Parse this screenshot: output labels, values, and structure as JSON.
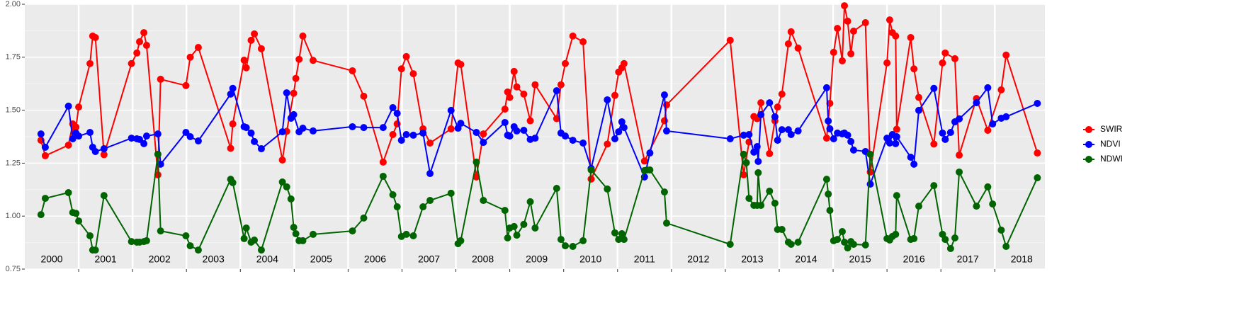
{
  "chart_data": {
    "type": "line",
    "xlim": [
      2000,
      2018.93
    ],
    "ylim": [
      0.75,
      2.0
    ],
    "xticks": [
      2001,
      2002,
      2003,
      2004,
      2005,
      2006,
      2007,
      2008,
      2009,
      2010,
      2011,
      2012,
      2013,
      2014,
      2015,
      2016,
      2017,
      2018
    ],
    "yticks": [
      {
        "value": 0.75,
        "label": "0.75"
      },
      {
        "value": 1.0,
        "label": "1.00"
      },
      {
        "value": 1.25,
        "label": "1.25"
      },
      {
        "value": 1.5,
        "label": "1.50"
      },
      {
        "value": 1.75,
        "label": "1.75"
      },
      {
        "value": 2.0,
        "label": "2.00"
      }
    ],
    "grid": true,
    "legend": "right",
    "annotations": [
      {
        "text": "2000",
        "x": 2000.5
      },
      {
        "text": "2001",
        "x": 2001.5
      },
      {
        "text": "2002",
        "x": 2002.5
      },
      {
        "text": "2003",
        "x": 2003.5
      },
      {
        "text": "2004",
        "x": 2004.5
      },
      {
        "text": "2005",
        "x": 2005.5
      },
      {
        "text": "2006",
        "x": 2006.5
      },
      {
        "text": "2007",
        "x": 2007.5
      },
      {
        "text": "2008",
        "x": 2008.5
      },
      {
        "text": "2009",
        "x": 2009.5
      },
      {
        "text": "2010",
        "x": 2010.5
      },
      {
        "text": "2011",
        "x": 2011.5
      },
      {
        "text": "2012",
        "x": 2012.5
      },
      {
        "text": "2013",
        "x": 2013.5
      },
      {
        "text": "2014",
        "x": 2014.5
      },
      {
        "text": "2015",
        "x": 2015.5
      },
      {
        "text": "2016",
        "x": 2016.5
      },
      {
        "text": "2017",
        "x": 2017.5
      },
      {
        "text": "2018",
        "x": 2018.5
      }
    ],
    "series": [
      {
        "name": "SWIR",
        "color": "#ff0000",
        "x": [
          2000.3,
          2000.38,
          2000.81,
          2000.89,
          2000.92,
          2000.95,
          2001.0,
          2001.21,
          2001.26,
          2001.31,
          2001.47,
          2001.98,
          2002.08,
          2002.13,
          2002.21,
          2002.26,
          2002.47,
          2002.52,
          2002.99,
          2003.07,
          2003.22,
          2003.82,
          2003.86,
          2004.07,
          2004.11,
          2004.2,
          2004.26,
          2004.39,
          2004.78,
          2004.86,
          2004.99,
          2005.03,
          2005.09,
          2005.16,
          2005.35,
          2006.08,
          2006.29,
          2006.65,
          2006.83,
          2006.91,
          2006.99,
          2007.08,
          2007.21,
          2007.39,
          2007.52,
          2007.91,
          2008.04,
          2008.09,
          2008.38,
          2008.51,
          2008.91,
          2008.96,
          2009.0,
          2009.08,
          2009.13,
          2009.26,
          2009.38,
          2009.47,
          2009.87,
          2009.95,
          2010.03,
          2010.17,
          2010.36,
          2010.51,
          2010.81,
          2010.95,
          2011.02,
          2011.08,
          2011.12,
          2011.5,
          2011.87,
          2011.91,
          2013.09,
          2013.34,
          2013.44,
          2013.53,
          2013.59,
          2013.66,
          2013.82,
          2013.92,
          2013.97,
          2014.05,
          2014.17,
          2014.22,
          2014.35,
          2014.88,
          2014.94,
          2015.01,
          2015.08,
          2015.17,
          2015.21,
          2015.27,
          2015.33,
          2015.38,
          2015.6,
          2015.69,
          2016.0,
          2016.05,
          2016.1,
          2016.16,
          2016.18,
          2016.44,
          2016.5,
          2016.59,
          2016.87,
          2017.03,
          2017.08,
          2017.26,
          2017.34,
          2017.66,
          2017.87,
          2018.12,
          2018.21,
          2018.79
        ],
        "values": [
          1.358,
          1.285,
          1.335,
          1.435,
          1.4,
          1.42,
          1.515,
          1.72,
          1.85,
          1.843,
          1.29,
          1.72,
          1.77,
          1.823,
          1.866,
          1.806,
          1.195,
          1.646,
          1.616,
          1.75,
          1.796,
          1.32,
          1.435,
          1.736,
          1.7,
          1.83,
          1.86,
          1.79,
          1.265,
          1.4,
          1.58,
          1.65,
          1.74,
          1.85,
          1.735,
          1.686,
          1.566,
          1.255,
          1.385,
          1.435,
          1.695,
          1.753,
          1.672,
          1.412,
          1.345,
          1.412,
          1.723,
          1.716,
          1.185,
          1.388,
          1.505,
          1.586,
          1.56,
          1.683,
          1.61,
          1.576,
          1.45,
          1.62,
          1.46,
          1.62,
          1.72,
          1.85,
          1.823,
          1.175,
          1.34,
          1.57,
          1.68,
          1.7,
          1.72,
          1.26,
          1.45,
          1.525,
          1.83,
          1.195,
          1.35,
          1.47,
          1.46,
          1.535,
          1.295,
          1.45,
          1.515,
          1.576,
          1.813,
          1.87,
          1.793,
          1.368,
          1.532,
          1.773,
          1.886,
          1.733,
          1.993,
          1.92,
          1.766,
          1.873,
          1.913,
          1.208,
          1.723,
          1.926,
          1.866,
          1.85,
          1.41,
          1.843,
          1.695,
          1.56,
          1.34,
          1.723,
          1.77,
          1.743,
          1.288,
          1.555,
          1.405,
          1.596,
          1.76,
          1.298
        ]
      },
      {
        "name": "NDVI",
        "color": "#0000ff",
        "x": [
          2000.3,
          2000.38,
          2000.81,
          2000.89,
          2000.95,
          2001.0,
          2001.21,
          2001.26,
          2001.31,
          2001.47,
          2001.98,
          2002.08,
          2002.13,
          2002.21,
          2002.26,
          2002.47,
          2002.52,
          2002.99,
          2003.07,
          2003.22,
          2003.82,
          2003.86,
          2004.07,
          2004.11,
          2004.2,
          2004.26,
          2004.39,
          2004.78,
          2004.86,
          2004.94,
          2004.99,
          2005.09,
          2005.16,
          2005.35,
          2006.08,
          2006.29,
          2006.65,
          2006.83,
          2006.91,
          2006.99,
          2007.08,
          2007.21,
          2007.39,
          2007.52,
          2007.91,
          2008.04,
          2008.09,
          2008.38,
          2008.51,
          2008.91,
          2008.96,
          2009.0,
          2009.08,
          2009.13,
          2009.26,
          2009.38,
          2009.47,
          2009.87,
          2009.95,
          2010.03,
          2010.17,
          2010.36,
          2010.51,
          2010.81,
          2010.95,
          2011.02,
          2011.08,
          2011.12,
          2011.5,
          2011.6,
          2011.87,
          2011.91,
          2013.09,
          2013.34,
          2013.44,
          2013.53,
          2013.59,
          2013.61,
          2013.66,
          2013.82,
          2013.92,
          2013.97,
          2014.05,
          2014.17,
          2014.22,
          2014.35,
          2014.88,
          2014.91,
          2014.94,
          2015.01,
          2015.08,
          2015.17,
          2015.21,
          2015.27,
          2015.33,
          2015.38,
          2015.6,
          2015.69,
          2016.0,
          2016.05,
          2016.1,
          2016.16,
          2016.18,
          2016.44,
          2016.5,
          2016.59,
          2016.87,
          2017.03,
          2017.08,
          2017.18,
          2017.26,
          2017.34,
          2017.66,
          2017.87,
          2017.96,
          2018.12,
          2018.21,
          2018.79
        ],
        "values": [
          1.388,
          1.325,
          1.519,
          1.365,
          1.392,
          1.378,
          1.395,
          1.325,
          1.305,
          1.318,
          1.368,
          1.365,
          1.362,
          1.342,
          1.378,
          1.388,
          1.245,
          1.395,
          1.375,
          1.355,
          1.576,
          1.603,
          1.422,
          1.418,
          1.392,
          1.352,
          1.318,
          1.398,
          1.582,
          1.462,
          1.479,
          1.398,
          1.415,
          1.402,
          1.422,
          1.418,
          1.418,
          1.512,
          1.485,
          1.358,
          1.385,
          1.382,
          1.392,
          1.201,
          1.499,
          1.415,
          1.438,
          1.395,
          1.348,
          1.442,
          1.382,
          1.378,
          1.422,
          1.402,
          1.405,
          1.362,
          1.368,
          1.592,
          1.392,
          1.378,
          1.358,
          1.345,
          1.225,
          1.549,
          1.365,
          1.398,
          1.445,
          1.418,
          1.185,
          1.298,
          1.572,
          1.402,
          1.365,
          1.382,
          1.385,
          1.302,
          1.328,
          1.258,
          1.479,
          1.535,
          1.469,
          1.358,
          1.408,
          1.408,
          1.385,
          1.402,
          1.606,
          1.449,
          1.412,
          1.365,
          1.392,
          1.388,
          1.392,
          1.382,
          1.352,
          1.312,
          1.305,
          1.151,
          1.368,
          1.345,
          1.385,
          1.342,
          1.375,
          1.278,
          1.245,
          1.499,
          1.603,
          1.392,
          1.362,
          1.395,
          1.445,
          1.459,
          1.535,
          1.606,
          1.435,
          1.462,
          1.469,
          1.532
        ]
      },
      {
        "name": "NDWI",
        "color": "#006400",
        "x": [
          2000.3,
          2000.38,
          2000.81,
          2000.89,
          2000.95,
          2001.0,
          2001.21,
          2001.26,
          2001.31,
          2001.47,
          2001.98,
          2002.08,
          2002.13,
          2002.21,
          2002.26,
          2002.47,
          2002.52,
          2002.99,
          2003.07,
          2003.22,
          2003.82,
          2003.86,
          2004.07,
          2004.11,
          2004.2,
          2004.26,
          2004.39,
          2004.78,
          2004.86,
          2004.94,
          2004.99,
          2005.03,
          2005.09,
          2005.16,
          2005.35,
          2006.08,
          2006.29,
          2006.65,
          2006.83,
          2006.91,
          2006.99,
          2007.08,
          2007.21,
          2007.39,
          2007.52,
          2007.91,
          2008.04,
          2008.09,
          2008.38,
          2008.51,
          2008.91,
          2008.96,
          2009.0,
          2009.08,
          2009.13,
          2009.26,
          2009.38,
          2009.47,
          2009.87,
          2009.95,
          2010.03,
          2010.17,
          2010.36,
          2010.51,
          2010.81,
          2010.95,
          2011.02,
          2011.08,
          2011.12,
          2011.5,
          2011.55,
          2011.6,
          2011.87,
          2011.91,
          2013.09,
          2013.34,
          2013.39,
          2013.44,
          2013.53,
          2013.59,
          2013.61,
          2013.66,
          2013.82,
          2013.92,
          2013.97,
          2014.05,
          2014.17,
          2014.22,
          2014.35,
          2014.88,
          2014.91,
          2014.94,
          2015.01,
          2015.08,
          2015.17,
          2015.21,
          2015.27,
          2015.33,
          2015.38,
          2015.6,
          2015.69,
          2016.0,
          2016.05,
          2016.1,
          2016.16,
          2016.18,
          2016.44,
          2016.5,
          2016.59,
          2016.87,
          2017.03,
          2017.08,
          2017.18,
          2017.26,
          2017.34,
          2017.66,
          2017.87,
          2017.96,
          2018.12,
          2018.21,
          2018.79
        ],
        "values": [
          1.007,
          1.084,
          1.111,
          1.017,
          1.013,
          0.977,
          0.907,
          0.84,
          0.84,
          1.097,
          0.88,
          0.877,
          0.877,
          0.88,
          0.884,
          1.292,
          0.93,
          0.907,
          0.86,
          0.84,
          1.174,
          1.158,
          0.894,
          0.944,
          0.877,
          0.887,
          0.84,
          1.161,
          1.138,
          1.081,
          0.947,
          0.917,
          0.884,
          0.884,
          0.914,
          0.93,
          0.991,
          1.188,
          1.101,
          1.044,
          0.904,
          0.914,
          0.907,
          1.044,
          1.074,
          1.108,
          0.87,
          0.884,
          1.255,
          1.074,
          1.027,
          0.897,
          0.944,
          0.951,
          0.91,
          0.961,
          1.068,
          0.944,
          1.131,
          0.89,
          0.86,
          0.857,
          0.884,
          1.218,
          1.128,
          0.921,
          0.89,
          0.917,
          0.89,
          1.215,
          1.218,
          1.218,
          1.114,
          0.967,
          0.867,
          1.292,
          1.252,
          1.084,
          1.051,
          1.051,
          1.205,
          1.051,
          1.118,
          1.061,
          0.937,
          0.937,
          0.877,
          0.867,
          0.877,
          1.174,
          1.104,
          1.027,
          0.884,
          0.89,
          0.927,
          0.877,
          0.85,
          0.88,
          0.867,
          0.864,
          1.292,
          0.894,
          0.887,
          0.904,
          0.914,
          1.097,
          0.89,
          0.894,
          1.047,
          1.144,
          0.914,
          0.89,
          0.847,
          0.897,
          1.208,
          1.047,
          1.138,
          1.057,
          0.934,
          0.857,
          1.181
        ]
      }
    ]
  }
}
